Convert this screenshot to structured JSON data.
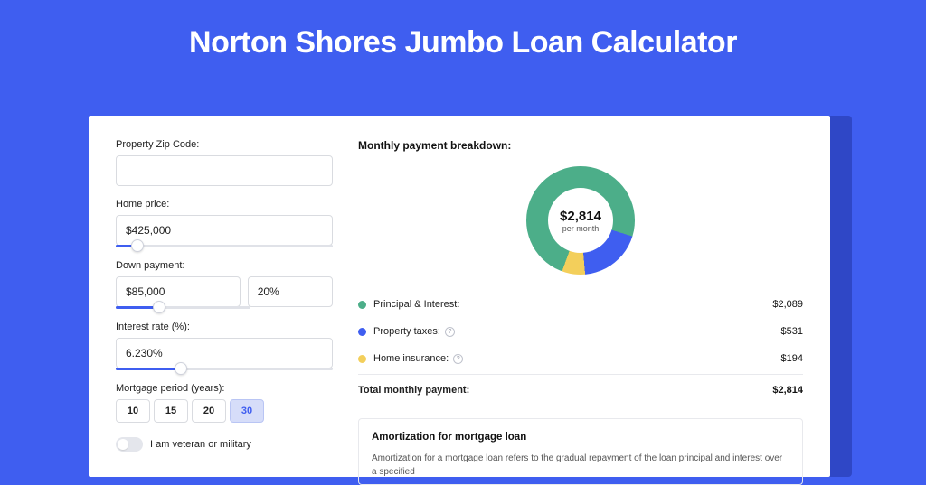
{
  "page": {
    "title": "Norton Shores Jumbo Loan Calculator",
    "bg_color": "#3f5ef0",
    "shadow_color": "#2f47c6"
  },
  "form": {
    "zip": {
      "label": "Property Zip Code:",
      "value": ""
    },
    "home_price": {
      "label": "Home price:",
      "value": "$425,000",
      "slider_pct": 10
    },
    "down_payment": {
      "label": "Down payment:",
      "amount": "$85,000",
      "percent": "20%",
      "slider_pct": 20
    },
    "interest_rate": {
      "label": "Interest rate (%):",
      "value": "6.230%",
      "slider_pct": 30
    },
    "period": {
      "label": "Mortgage period (years):",
      "options": [
        "10",
        "15",
        "20",
        "30"
      ],
      "selected": "30"
    },
    "veteran": {
      "label": "I am veteran or military",
      "checked": false
    }
  },
  "breakdown": {
    "title": "Monthly payment breakdown:",
    "donut": {
      "type": "donut",
      "center_value": "$2,814",
      "center_sub": "per month",
      "slices": [
        {
          "label": "Principal & Interest",
          "value": 2089,
          "pct": 74.2,
          "color": "#4cae89"
        },
        {
          "label": "Property taxes",
          "value": 531,
          "pct": 18.9,
          "color": "#3f5ef0"
        },
        {
          "label": "Home insurance",
          "value": 194,
          "pct": 6.9,
          "color": "#f3cf5b"
        }
      ],
      "background_color": "#ffffff"
    },
    "items": [
      {
        "label": "Principal & Interest:",
        "value": "$2,089",
        "color": "#4cae89",
        "info": false
      },
      {
        "label": "Property taxes:",
        "value": "$531",
        "color": "#3f5ef0",
        "info": true
      },
      {
        "label": "Home insurance:",
        "value": "$194",
        "color": "#f3cf5b",
        "info": true
      }
    ],
    "total": {
      "label": "Total monthly payment:",
      "value": "$2,814"
    }
  },
  "amortization": {
    "title": "Amortization for mortgage loan",
    "text": "Amortization for a mortgage loan refers to the gradual repayment of the loan principal and interest over a specified"
  }
}
